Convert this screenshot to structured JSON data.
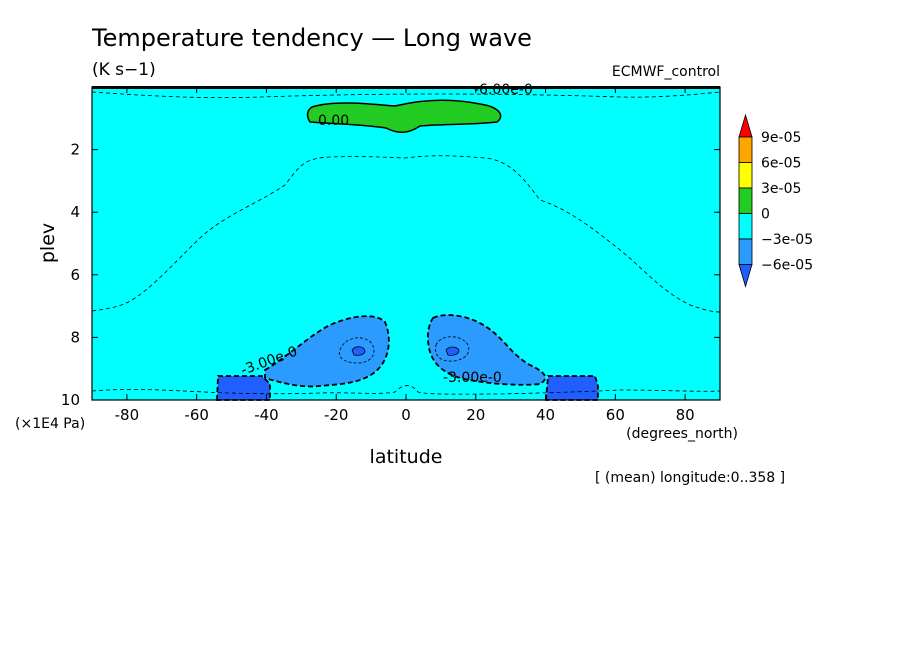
{
  "chart_data": {
    "type": "heatmap",
    "title": "Temperature tendency — Long wave",
    "units": "(K s−1)",
    "dataset": "ECMWF_control",
    "xlabel": "latitude",
    "ylabel": "plev",
    "x_units": "(degrees_north)",
    "y_units": "(×1E4 Pa)",
    "footnote": "[ (mean) longitude:0..358 ]",
    "xlim": [
      -90,
      90
    ],
    "ylim": [
      10,
      0
    ],
    "x_ticks": [
      "-80",
      "-60",
      "-40",
      "-20",
      "0",
      "20",
      "40",
      "60",
      "80"
    ],
    "y_ticks": [
      "2",
      "4",
      "6",
      "8",
      "10"
    ],
    "colorbar": {
      "levels": [
        "9e-05",
        "6e-05",
        "3e-05",
        "0",
        "−3e-05",
        "−6e-05"
      ],
      "colors": [
        "#ff0000",
        "#ffa500",
        "#ffff00",
        "#22cc22",
        "#00ffff",
        "#2b9bff",
        "#1f5fff"
      ]
    },
    "background_fill": "#00ffff",
    "regions": [
      {
        "range": "0 to 3e-05",
        "color": "#22cc22",
        "center_lat": 0,
        "center_plev": 1.0
      },
      {
        "range": "-6e-05 to -3e-05",
        "color": "#2b9bff",
        "center_lat": -14,
        "center_plev": 8.6
      },
      {
        "range": "-6e-05 to -3e-05",
        "color": "#2b9bff",
        "center_lat": 14,
        "center_plev": 8.6
      },
      {
        "range": "< -6e-05",
        "color": "#1f5fff",
        "center_lat": -47,
        "center_plev": 9.6
      },
      {
        "range": "< -6e-05",
        "color": "#1f5fff",
        "center_lat": 47,
        "center_plev": 9.6
      }
    ],
    "contour_labels": [
      "0.00",
      "-3.00e-0",
      "-3.00e-0",
      "-6.00e-0"
    ]
  }
}
